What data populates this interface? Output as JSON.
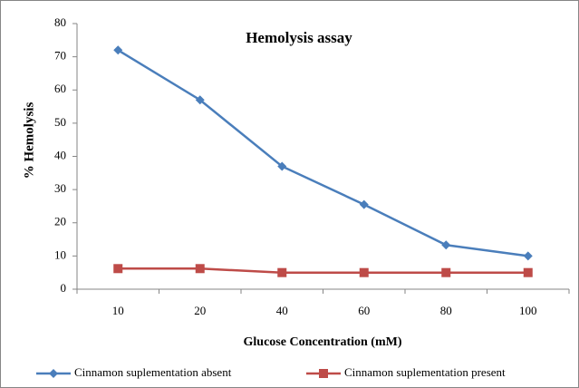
{
  "chart_data": {
    "type": "line",
    "title": "Hemolysis  assay",
    "x_label": "Glucose Concentration (mM)",
    "y_label": "% Hemolysis",
    "categories": [
      "10",
      "20",
      "40",
      "60",
      "80",
      "100"
    ],
    "series": [
      {
        "name": "Cinnamon suplementation absent",
        "color": "#4a7ebb",
        "marker": "diamond",
        "values": [
          72,
          57,
          37,
          25.5,
          13.3,
          10
        ]
      },
      {
        "name": "Cinnamon suplementation present",
        "color": "#be4b48",
        "marker": "square",
        "values": [
          6.2,
          6.2,
          5,
          5,
          5,
          5
        ]
      }
    ],
    "ylim": [
      0,
      80
    ],
    "yticks": [
      0,
      10,
      20,
      30,
      40,
      50,
      60,
      70,
      80
    ],
    "grid": false,
    "legend": "bottom"
  }
}
